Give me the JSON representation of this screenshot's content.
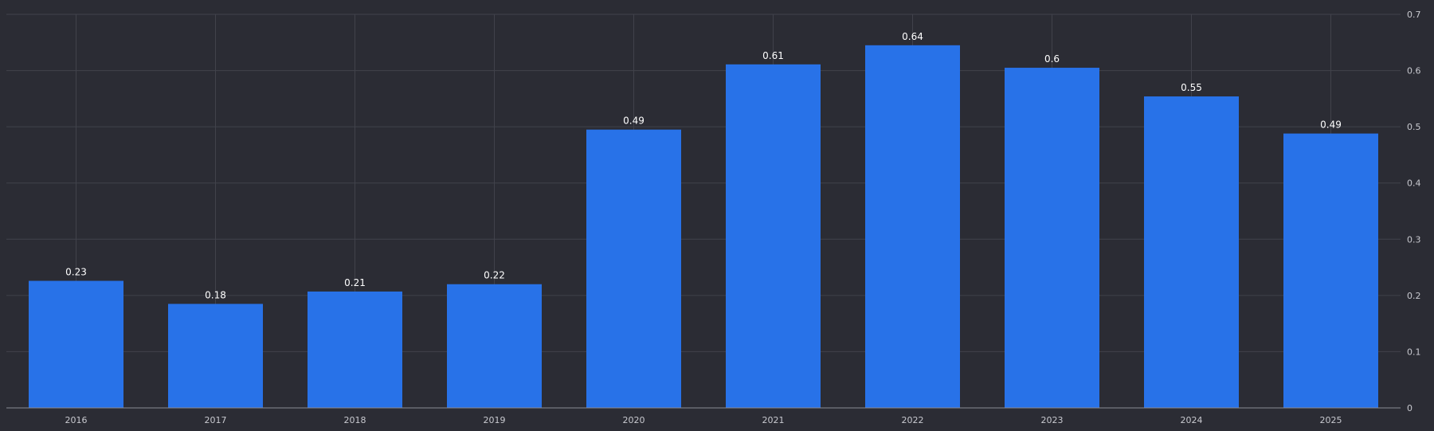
{
  "chart_data": {
    "type": "bar",
    "title": "",
    "xlabel": "",
    "ylabel": "",
    "categories": [
      "2016",
      "2017",
      "2018",
      "2019",
      "2020",
      "2021",
      "2022",
      "2023",
      "2024",
      "2025"
    ],
    "series": [
      {
        "values": [
          0.226,
          0.185,
          0.207,
          0.22,
          0.495,
          0.611,
          0.645,
          0.605,
          0.554,
          0.488
        ],
        "labels": [
          "0.23",
          "0.18",
          "0.21",
          "0.22",
          "0.49",
          "0.61",
          "0.64",
          "0.6",
          "0.55",
          "0.49"
        ],
        "color": "#2872e8"
      }
    ],
    "ylim": [
      0,
      0.7
    ],
    "yticks": [
      0,
      0.1,
      0.2,
      0.3,
      0.4,
      0.5,
      0.6,
      0.7
    ],
    "ytick_labels": [
      "0",
      "0.1",
      "0.2",
      "0.3",
      "0.4",
      "0.5",
      "0.6",
      "0.7"
    ],
    "y_axis_position": "right",
    "grid": true,
    "legend": "none"
  },
  "colors": {
    "background": "#2b2c34",
    "bar": "#2872e8",
    "grid": "#41424b",
    "text": "#c8c9cf",
    "label": "#ffffff"
  }
}
